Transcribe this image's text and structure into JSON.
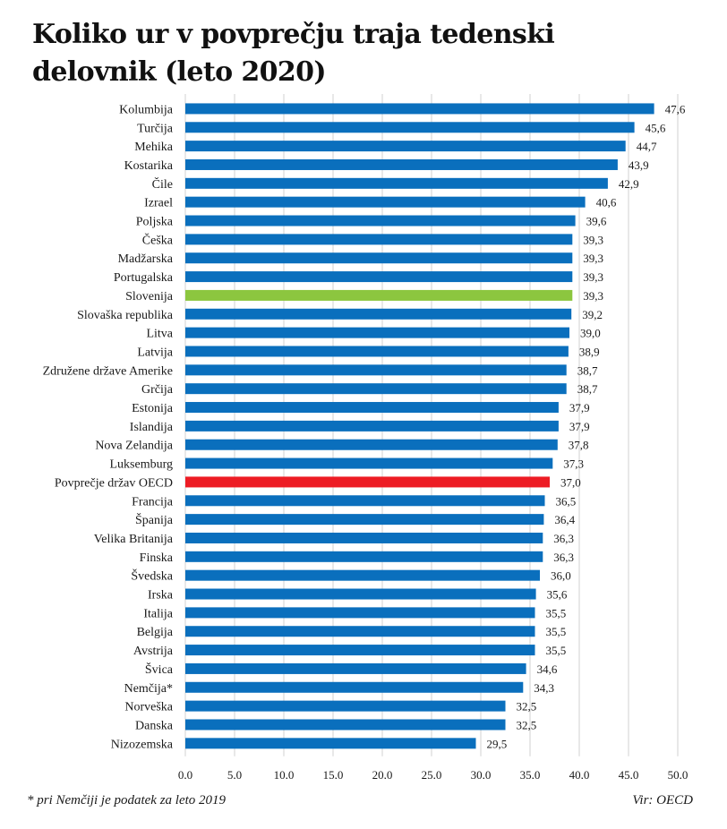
{
  "chart_data": {
    "type": "bar",
    "orientation": "horizontal",
    "title": "Koliko ur v povprečju traja tedenski delovnik (leto 2020)",
    "xlabel": "",
    "ylabel": "",
    "xlim": [
      0,
      50
    ],
    "x_ticks": [
      "0,0",
      "5,0",
      "10,0",
      "15,0",
      "20,0",
      "25,0",
      "30,0",
      "35,0",
      "40,0",
      "45,0",
      "50,0"
    ],
    "x_tick_values": [
      0,
      5,
      10,
      15,
      20,
      25,
      30,
      35,
      40,
      45,
      50
    ],
    "grid": "vertical",
    "colors": {
      "default": "#0a6fbd",
      "slovenia": "#8cc63f",
      "oecd": "#ed1c24",
      "grid": "#d0d0d0"
    },
    "categories": [
      "Kolumbija",
      "Turčija",
      "Mehika",
      "Kostarika",
      "Čile",
      "Izrael",
      "Poljska",
      "Češka",
      "Madžarska",
      "Portugalska",
      "Slovenija",
      "Slovaška republika",
      "Litva",
      "Latvija",
      "Združene države Amerike",
      "Grčija",
      "Estonija",
      "Islandija",
      "Nova Zelandija",
      "Luksemburg",
      "Povprečje držav OECD",
      "Francija",
      "Španija",
      "Velika Britanija",
      "Finska",
      "Švedska",
      "Irska",
      "Italija",
      "Belgija",
      "Avstrija",
      "Švica",
      "Nemčija*",
      "Norveška",
      "Danska",
      "Nizozemska"
    ],
    "values": [
      47.6,
      45.6,
      44.7,
      43.9,
      42.9,
      40.6,
      39.6,
      39.3,
      39.3,
      39.3,
      39.3,
      39.2,
      39.0,
      38.9,
      38.7,
      38.7,
      37.9,
      37.9,
      37.8,
      37.3,
      37.0,
      36.5,
      36.4,
      36.3,
      36.3,
      36.0,
      35.6,
      35.5,
      35.5,
      35.5,
      34.6,
      34.3,
      32.5,
      32.5,
      29.5
    ],
    "value_labels": [
      "47,6",
      "45,6",
      "44,7",
      "43,9",
      "42,9",
      "40,6",
      "39,6",
      "39,3",
      "39,3",
      "39,3",
      "39,3",
      "39,2",
      "39,0",
      "38,9",
      "38,7",
      "38,7",
      "37,9",
      "37,9",
      "37,8",
      "37,3",
      "37,0",
      "36,5",
      "36,4",
      "36,3",
      "36,3",
      "36,0",
      "35,6",
      "35,5",
      "35,5",
      "35,5",
      "34,6",
      "34,3",
      "32,5",
      "32,5",
      "29,5"
    ],
    "highlight": {
      "Slovenija": "slovenia",
      "Povprečje držav OECD": "oecd"
    },
    "footnote": "* pri Nemčiji je podatek za leto 2019",
    "source": "Vir: OECD"
  },
  "header": {
    "title": "Koliko ur v povprečju traja tedenski delovnik (leto 2020)"
  },
  "footer": {
    "footnote": "* pri Nemčiji je podatek za leto 2019",
    "source": "Vir: OECD"
  }
}
